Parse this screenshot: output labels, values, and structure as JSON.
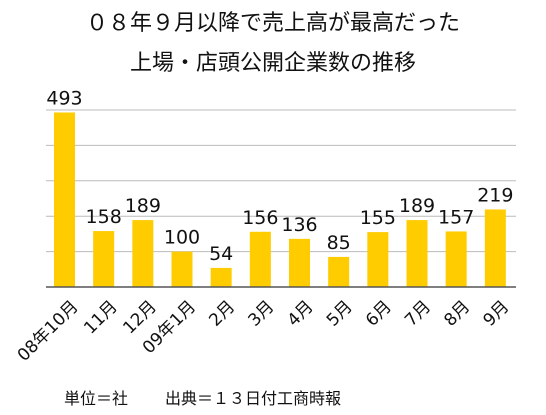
{
  "chart_data": {
    "type": "bar",
    "title_lines": [
      "０８年９月以降で売上高が最高だった",
      "上場・店頭公開企業数の推移"
    ],
    "categories": [
      "08年10月",
      "11月",
      "12月",
      "09年1月",
      "2月",
      "3月",
      "4月",
      "5月",
      "6月",
      "7月",
      "8月",
      "9月"
    ],
    "values": [
      493,
      158,
      189,
      100,
      54,
      156,
      136,
      85,
      155,
      189,
      157,
      219
    ],
    "ylim": [
      0,
      500
    ],
    "ygrid_step": 100,
    "grid": true,
    "bar_color": "#FFCC00",
    "grid_color": "#BBBBBB",
    "axis_color": "#555555",
    "footnote_unit": "単位＝社",
    "footnote_source": "出典＝１３日付工商時報"
  }
}
